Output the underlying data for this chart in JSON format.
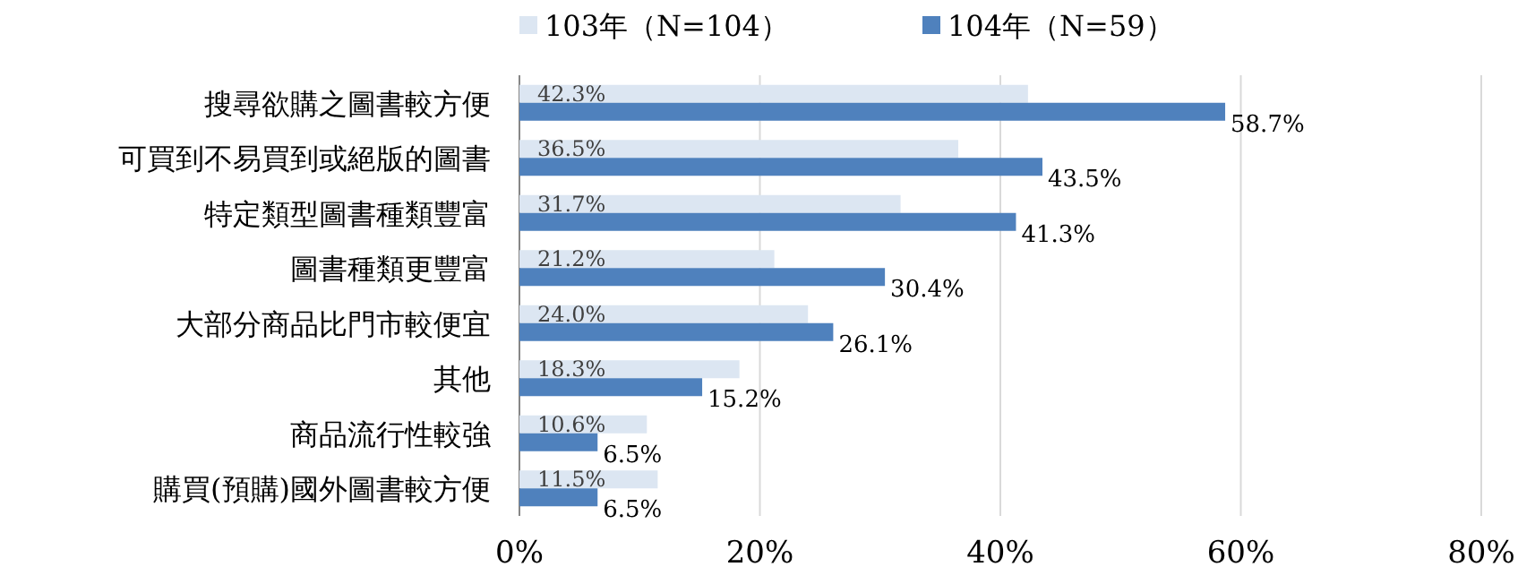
{
  "chart_data": {
    "type": "bar",
    "orientation": "horizontal",
    "categories": [
      "搜尋欲購之圖書較方便",
      "可買到不易買到或絕版的圖書",
      "特定類型圖書種類豐富",
      "圖書種類更豐富",
      "大部分商品比門市較便宜",
      "其他",
      "商品流行性較強",
      "購買(預購)國外圖書較方便"
    ],
    "series": [
      {
        "name": "103年（N=104）",
        "color": "#dce6f2",
        "values": [
          42.3,
          36.5,
          31.7,
          21.2,
          24.0,
          18.3,
          10.6,
          11.5
        ],
        "value_labels": [
          "42.3%",
          "36.5%",
          "31.7%",
          "21.2%",
          "24.0%",
          "18.3%",
          "10.6%",
          "11.5%"
        ]
      },
      {
        "name": "104年（N=59）",
        "color": "#4f81bd",
        "values": [
          58.7,
          43.5,
          41.3,
          30.4,
          26.1,
          15.2,
          6.5,
          6.5
        ],
        "value_labels": [
          "58.7%",
          "43.5%",
          "41.3%",
          "30.4%",
          "26.1%",
          "15.2%",
          "6.5%",
          "6.5%"
        ]
      }
    ],
    "xlim": [
      0,
      80
    ],
    "xticks": [
      {
        "value": 0,
        "label": "0%"
      },
      {
        "value": 20,
        "label": "20%"
      },
      {
        "value": 40,
        "label": "40%"
      },
      {
        "value": 60,
        "label": "60%"
      },
      {
        "value": 80,
        "label": "80%"
      }
    ],
    "grid": "x",
    "legend": "top"
  }
}
